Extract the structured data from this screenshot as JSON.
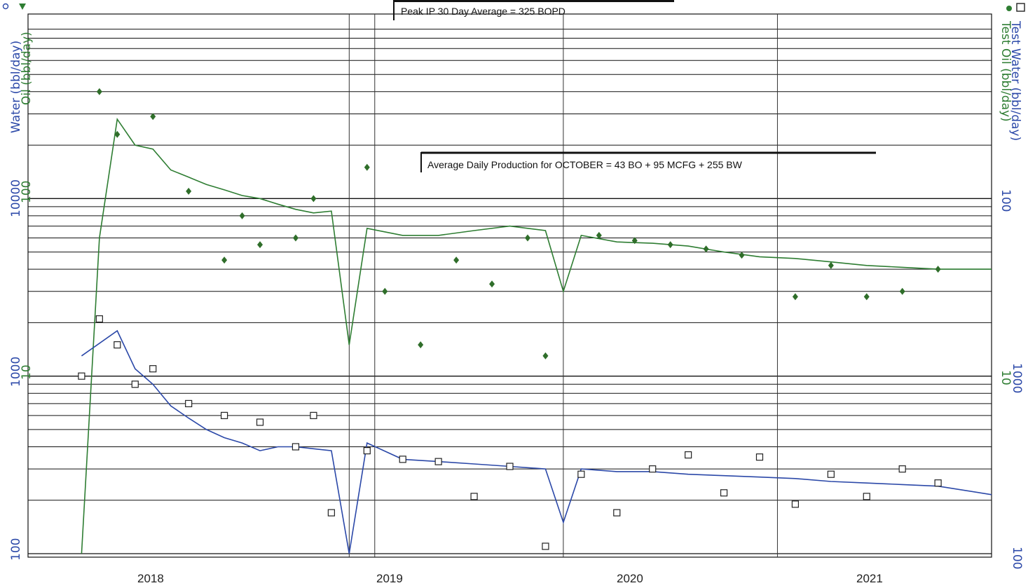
{
  "chart_data": {
    "type": "scatter",
    "scale": "log",
    "yaxis_left": {
      "title_outer": "Water (bbl/day)",
      "title_inner": "Oil (bbl/day)",
      "ticks_outer": [
        "10000",
        "1000",
        "100"
      ],
      "ticks_inner": [
        "100",
        "10"
      ],
      "outer_range": [
        100,
        100000
      ],
      "inner_range": [
        1,
        1000
      ]
    },
    "yaxis_right": {
      "title_outer": "Test Water (bbl/day)",
      "title_inner": "Test Oil (bbl/day)",
      "ticks_outer": [
        "100",
        "1000",
        "100"
      ],
      "ticks_inner": [
        "10"
      ]
    },
    "xaxis": {
      "ticks": [
        "2018",
        "2019",
        "2020",
        "2021"
      ],
      "range": [
        "2017-06",
        "2021-12"
      ]
    },
    "legend": {
      "placement": "top corners"
    },
    "colors": {
      "oil": "#2e7d32",
      "oil_marker": "#2f6e2a",
      "water": "#2b48a8",
      "grid": "#111111"
    },
    "annotations": [
      "Peak IP 30 Day Average = 325 BOPD",
      "Average Daily Production for OCTOBER = 43 BO + 95 MCFG + 255 BW"
    ],
    "series": [
      {
        "name": "Oil (bbl/day)",
        "style": "line",
        "x": [
          "2017-09",
          "2017-10",
          "2017-11",
          "2017-12",
          "2018-01",
          "2018-02",
          "2018-03",
          "2018-04",
          "2018-05",
          "2018-06",
          "2018-07",
          "2018-08",
          "2018-09",
          "2018-10",
          "2018-11",
          "2018-12",
          "2019-01",
          "2019-03",
          "2019-05",
          "2019-07",
          "2019-09",
          "2019-10",
          "2019-11",
          "2019-12",
          "2020-01",
          "2020-03",
          "2020-05",
          "2020-07",
          "2020-09",
          "2020-11",
          "2021-01",
          "2021-03",
          "2021-05",
          "2021-07",
          "2021-09",
          "2021-12"
        ],
        "y": [
          1,
          60,
          280,
          200,
          190,
          145,
          132,
          120,
          112,
          104,
          100,
          93,
          87,
          83,
          85,
          15,
          68,
          62,
          62,
          66,
          70,
          68,
          66,
          30,
          62,
          57,
          56,
          54,
          50,
          47,
          46,
          44,
          42,
          41,
          40,
          40
        ]
      },
      {
        "name": "Water (bbl/day)",
        "style": "line",
        "x": [
          "2017-09",
          "2017-11",
          "2017-12",
          "2018-01",
          "2018-02",
          "2018-03",
          "2018-04",
          "2018-05",
          "2018-06",
          "2018-07",
          "2018-08",
          "2018-09",
          "2018-10",
          "2018-11",
          "2018-12",
          "2019-01",
          "2019-03",
          "2019-05",
          "2019-07",
          "2019-09",
          "2019-11",
          "2019-12",
          "2020-01",
          "2020-03",
          "2020-05",
          "2020-07",
          "2020-09",
          "2020-11",
          "2021-01",
          "2021-03",
          "2021-05",
          "2021-07",
          "2021-09",
          "2021-12"
        ],
        "y": [
          1300,
          1800,
          1100,
          900,
          680,
          580,
          500,
          450,
          420,
          380,
          400,
          400,
          390,
          380,
          100,
          420,
          340,
          330,
          320,
          310,
          300,
          150,
          300,
          290,
          290,
          280,
          275,
          270,
          265,
          255,
          250,
          245,
          240,
          215
        ]
      },
      {
        "name": "Test Oil (bbl/day)",
        "style": "marker-diamond",
        "x": [
          "2017-10",
          "2017-11",
          "2018-01",
          "2018-03",
          "2018-05",
          "2018-06",
          "2018-07",
          "2018-09",
          "2018-10",
          "2019-01",
          "2019-02",
          "2019-04",
          "2019-06",
          "2019-08",
          "2019-10",
          "2019-11",
          "2020-02",
          "2020-04",
          "2020-06",
          "2020-08",
          "2020-10",
          "2021-01",
          "2021-03",
          "2021-05",
          "2021-07",
          "2021-09"
        ],
        "y": [
          400,
          230,
          290,
          110,
          45,
          80,
          55,
          60,
          100,
          150,
          30,
          15,
          45,
          33,
          60,
          13,
          62,
          58,
          55,
          52,
          48,
          28,
          42,
          28,
          30,
          40
        ]
      },
      {
        "name": "Test Water (bbl/day)",
        "style": "marker-square",
        "x": [
          "2017-09",
          "2017-10",
          "2017-11",
          "2017-12",
          "2018-01",
          "2018-03",
          "2018-05",
          "2018-07",
          "2018-09",
          "2018-10",
          "2018-11",
          "2019-01",
          "2019-03",
          "2019-05",
          "2019-07",
          "2019-09",
          "2019-11",
          "2020-01",
          "2020-03",
          "2020-05",
          "2020-07",
          "2020-09",
          "2020-11",
          "2021-01",
          "2021-03",
          "2021-05",
          "2021-07",
          "2021-09"
        ],
        "y": [
          1000,
          2100,
          1500,
          900,
          1100,
          700,
          600,
          550,
          400,
          600,
          170,
          380,
          340,
          330,
          210,
          310,
          110,
          280,
          170,
          300,
          360,
          220,
          350,
          190,
          280,
          210,
          300,
          250
        ]
      }
    ]
  }
}
